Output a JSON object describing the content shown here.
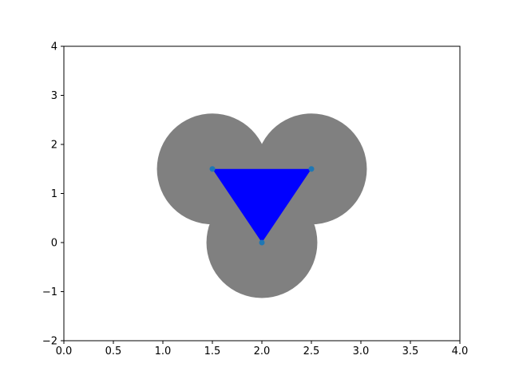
{
  "chart_data": {
    "type": "scatter",
    "title": "",
    "xlabel": "",
    "ylabel": "",
    "xlim": [
      0,
      4
    ],
    "ylim": [
      -2,
      4
    ],
    "grid": false,
    "xticks": [
      0.0,
      0.5,
      1.0,
      1.5,
      2.0,
      2.5,
      3.0,
      3.5,
      4.0
    ],
    "xtick_labels": [
      "0.0",
      "0.5",
      "1.0",
      "1.5",
      "2.0",
      "2.5",
      "3.0",
      "3.5",
      "4.0"
    ],
    "yticks": [
      -2,
      -1,
      0,
      1,
      2,
      3,
      4
    ],
    "ytick_labels": [
      "−2",
      "−1",
      "0",
      "1",
      "2",
      "3",
      "4"
    ],
    "points": [
      {
        "x": 1.5,
        "y": 1.5
      },
      {
        "x": 2.5,
        "y": 1.5
      },
      {
        "x": 2.0,
        "y": 0.0
      }
    ],
    "disks": [
      {
        "cx": 1.5,
        "cy": 1.5,
        "r": 0.56
      },
      {
        "cx": 2.5,
        "cy": 1.5,
        "r": 0.56
      },
      {
        "cx": 2.0,
        "cy": 0.0,
        "r": 0.56
      }
    ],
    "triangle": [
      [
        1.5,
        1.5
      ],
      [
        2.5,
        1.5
      ],
      [
        2.0,
        0.0
      ]
    ],
    "colors": {
      "disk": "#808080",
      "triangle": "#0000ff",
      "point": "#1f77b4",
      "axes": "#000000"
    }
  }
}
